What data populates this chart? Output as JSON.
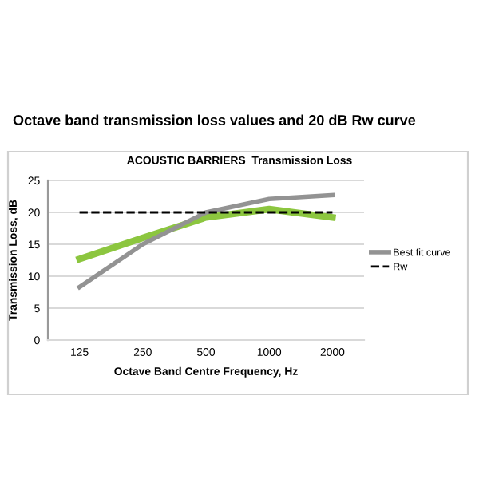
{
  "chart_data": {
    "type": "line",
    "title": "Octave band transmission loss values and 20 dB Rw curve",
    "subtitle": "ACOUSTIC BARRIERS  Transmission Loss",
    "xlabel": "Octave Band Centre Frequency, Hz",
    "ylabel": "Transmission Loss, dB",
    "categories": [
      "125",
      "250",
      "500",
      "1000",
      "2000"
    ],
    "series": [
      {
        "color": "#8cc63f",
        "values": [
          12.7,
          16.0,
          19.2,
          20.5,
          19.2
        ]
      },
      {
        "name": "Best fit curve",
        "color": "#939393",
        "values": [
          8.3,
          15.0,
          20.0,
          22.1,
          22.7
        ]
      },
      {
        "name": "Rw",
        "color": "#000000",
        "values": [
          20,
          20,
          20,
          20,
          20
        ],
        "line_style": "dashed"
      }
    ],
    "ylim": [
      0,
      25
    ],
    "yticks": [
      0,
      5,
      10,
      15,
      20,
      25
    ],
    "grid": "y",
    "legend": "right"
  }
}
